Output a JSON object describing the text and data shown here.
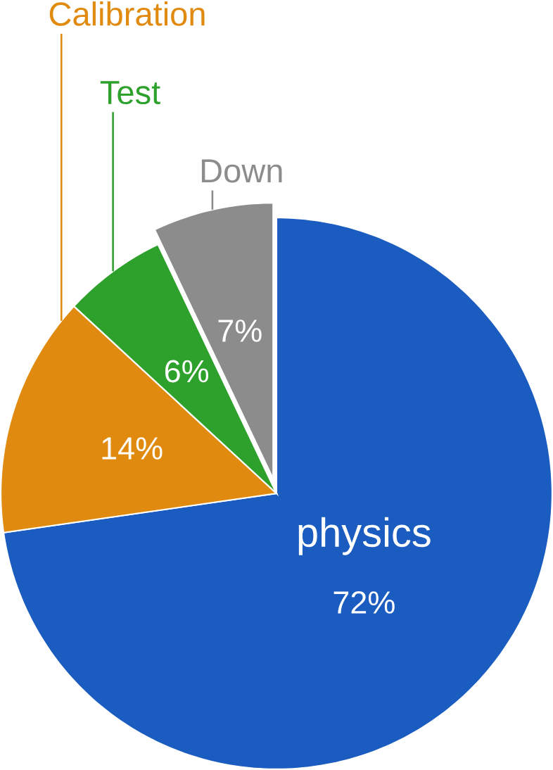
{
  "chart_data": {
    "type": "pie",
    "categories": [
      "physics",
      "Calibration",
      "Test",
      "Down"
    ],
    "values": [
      72,
      14,
      6,
      7
    ],
    "colors": [
      "#1a5cc0",
      "#e08a10",
      "#2ea02c",
      "#8c8c8c"
    ],
    "value_labels": [
      "72%",
      "14%",
      "6%",
      "7%"
    ]
  }
}
